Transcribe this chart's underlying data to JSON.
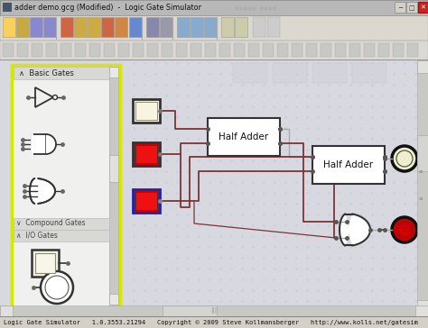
{
  "title_bar_text": "adder demo.gcg (Modified)  -  Logic Gate Simulator",
  "status_bar_text": "Logic Gate Simulator   1.0.3553.21294   Copyright © 2009 Steve Kollmansberger   http://www.kolls.net/gatesim",
  "basic_gates_label": "Basic Gates",
  "compound_gates_label": "Compound Gates",
  "io_gates_label": "I/O Gates",
  "half_adder1_label": "Half Adder",
  "half_adder2_label": "Half Adder",
  "title_bar_bg": "#c8c8c8",
  "toolbar_bg": "#e8e4dc",
  "canvas_bg": "#d8d8e0",
  "canvas_grid_color": "#c4c4cc",
  "left_panel_bg": "#f0f0ee",
  "left_panel_border": "#d4e800",
  "panel_title_bg": "#d8d8d4",
  "status_bar_bg": "#d4d0c8",
  "window_bg": "#c0bdb8",
  "input1_fill": "#f8f4dc",
  "input2_fill": "#cc0000",
  "input3_fill": "#cc0000",
  "input3_border": "#2222aa",
  "output1_fill": "#f0eecc",
  "output2_fill": "#cc0000",
  "wire_dark": "#7a3535",
  "wire_light": "#aaaaaa",
  "gate_fill": "#ffffff",
  "gate_border": "#222222"
}
